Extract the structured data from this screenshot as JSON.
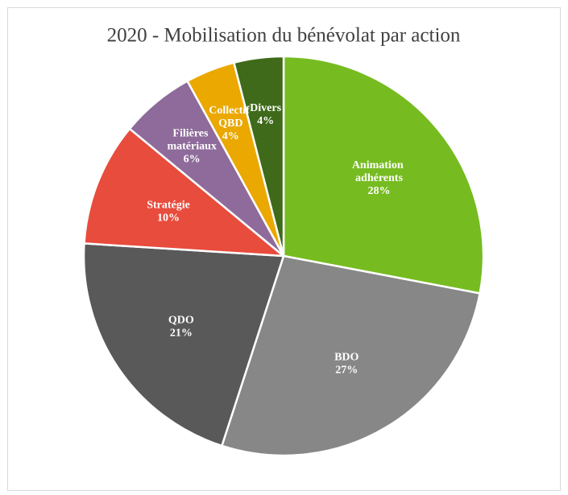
{
  "chart_data": {
    "type": "pie",
    "title": "2020 - Mobilisation du bénévolat par action",
    "categories": [
      "Animation adhérents",
      "BDO",
      "QDO",
      "Stratégie",
      "Filières matériaux",
      "Collectif QBD",
      "Divers"
    ],
    "values": [
      28,
      27,
      21,
      10,
      6,
      4,
      4
    ],
    "value_labels": [
      "28%",
      "27%",
      "21%",
      "10%",
      "6%",
      "4%",
      "4%"
    ],
    "colors": [
      "#76bc21",
      "#878787",
      "#595959",
      "#e84c3d",
      "#8e6b9b",
      "#eaa800",
      "#3e6a1a"
    ]
  }
}
